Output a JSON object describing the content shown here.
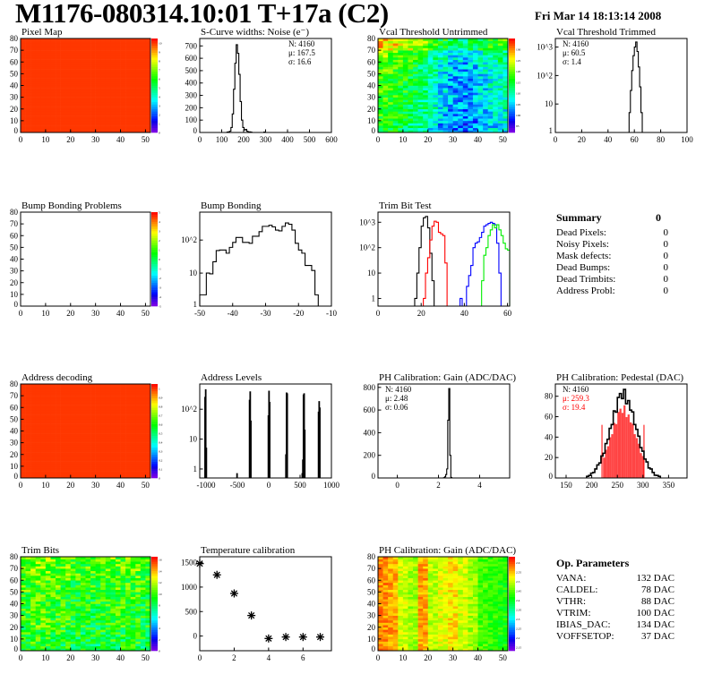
{
  "header": {
    "title": "M1176-080314.10:01 T+17a (C2)",
    "date": "Fri Mar 14 18:13:14 2008"
  },
  "palette": {
    "frame": "#000000",
    "red": "#ff0000",
    "blue": "#0000ff",
    "green": "#00ee00"
  },
  "panels": [
    {
      "title": "Pixel Map",
      "chart_data": {
        "type": "heatmap",
        "xlim": [
          0,
          52
        ],
        "ylim": [
          0,
          80
        ],
        "xticks": [
          0,
          10,
          20,
          30,
          40,
          50
        ],
        "yticks": [
          0,
          10,
          20,
          30,
          40,
          50,
          60,
          70,
          80
        ],
        "zlim": [
          0,
          10.5
        ],
        "mean": 10,
        "noise": 0,
        "col_profile": [],
        "row_profile": [],
        "zticks": [
          "0",
          "1",
          "2",
          "3",
          "4",
          "5",
          "6",
          "7",
          "8",
          "9",
          "10"
        ]
      }
    },
    {
      "title": "S-Curve widths: Noise (e⁻)",
      "chart_data": {
        "type": "bar",
        "log": false,
        "xlim": [
          0,
          600
        ],
        "ylim": [
          0,
          760
        ],
        "xticks": [
          0,
          100,
          200,
          300,
          400,
          500,
          600
        ],
        "yticks": [
          0,
          100,
          200,
          300,
          400,
          500,
          600,
          700
        ],
        "stats_pos": "top-right",
        "stats": [
          {
            "text": "N: 4160",
            "color": "#000000"
          },
          {
            "text": "μ: 167.5",
            "color": "#000000"
          },
          {
            "text": "σ: 16.6",
            "color": "#000000"
          }
        ],
        "series": [
          {
            "name": "noise",
            "color": "#000000",
            "x0": 124,
            "width": 6,
            "values": [
              3,
              5,
              10,
              40,
              150,
              350,
              560,
              710,
              640,
              470,
              250,
              100,
              40,
              20,
              25,
              10,
              5,
              5,
              2,
              0,
              0,
              0,
              0,
              0,
              0,
              0,
              0,
              0,
              3
            ]
          }
        ]
      }
    },
    {
      "title": "Vcal Threshold Untrimmed",
      "chart_data": {
        "type": "heatmap",
        "xlim": [
          0,
          52
        ],
        "ylim": [
          0,
          80
        ],
        "xticks": [
          0,
          10,
          20,
          30,
          40,
          50
        ],
        "yticks": [
          0,
          10,
          20,
          30,
          40,
          50,
          60,
          70,
          80
        ],
        "zlim": [
          92,
          135
        ],
        "mean": 112,
        "noise": 5,
        "col_profile": [
          6,
          5,
          4,
          2,
          0,
          -3,
          -6,
          -8,
          -9,
          -8,
          -6,
          -4,
          -3
        ],
        "row_profile": [
          -2,
          -1,
          0,
          0,
          0,
          1,
          3,
          9
        ],
        "zticks": [
          "95",
          "100",
          "105",
          "110",
          "115",
          "120",
          "125",
          "130"
        ]
      }
    },
    {
      "title": "Vcal Threshold Trimmed",
      "chart_data": {
        "type": "bar",
        "log": true,
        "xlim": [
          0,
          100
        ],
        "ylim": [
          1,
          2000
        ],
        "xticks": [
          0,
          20,
          40,
          60,
          80,
          100
        ],
        "yticks": [
          1,
          10,
          100,
          1000
        ],
        "ytick_labels": [
          "1",
          "10",
          "10^2",
          "10^3"
        ],
        "stats_pos": "top-left",
        "stats": [
          {
            "text": "N: 4160",
            "color": "#000000"
          },
          {
            "text": "μ: 60.5",
            "color": "#000000"
          },
          {
            "text": "σ:  1.4",
            "color": "#000000"
          }
        ],
        "series": [
          {
            "name": "vcal",
            "color": "#000000",
            "x0": 56,
            "width": 1,
            "values": [
              5,
              30,
              150,
              500,
              1000,
              1500,
              700,
              200,
              40,
              5
            ]
          }
        ]
      }
    },
    {
      "title": "Bump Bonding Problems",
      "chart_data": {
        "type": "heatmap",
        "xlim": [
          0,
          52
        ],
        "ylim": [
          0,
          80
        ],
        "xticks": [
          0,
          10,
          20,
          30,
          40,
          50
        ],
        "yticks": [
          0,
          10,
          20,
          30,
          40,
          50,
          60,
          70,
          80
        ],
        "zlim": [
          -5,
          5
        ],
        "empty": true,
        "mean": 0,
        "noise": 0,
        "col_profile": [],
        "row_profile": [],
        "zticks": [
          "-5",
          "-4",
          "-3",
          "-2",
          "-1",
          "0",
          "1",
          "2",
          "3",
          "4",
          "5"
        ]
      }
    },
    {
      "title": "Bump Bonding",
      "chart_data": {
        "type": "bar",
        "log": true,
        "xlim": [
          -50,
          -10
        ],
        "ylim": [
          1,
          700
        ],
        "xticks": [
          -50,
          -40,
          -30,
          -20,
          -10
        ],
        "yticks": [
          1,
          10,
          100
        ],
        "ytick_labels": [
          "1",
          "10",
          "10^2"
        ],
        "series": [
          {
            "name": "bump",
            "color": "#000000",
            "x0": -50,
            "width": 1.0,
            "values": [
              2.2,
              2.2,
              10,
              9.5,
              22,
              48,
              50,
              50,
              40,
              60,
              85,
              120,
              120,
              85,
              85,
              80,
              130,
              130,
              180,
              260,
              260,
              280,
              250,
              200,
              190,
              260,
              330,
              300,
              200,
              80,
              50,
              40,
              17,
              17,
              12,
              2.2
            ]
          }
        ]
      }
    },
    {
      "title": "Trim Bit Test",
      "chart_data": {
        "type": "bar",
        "log": true,
        "xlim": [
          0,
          61
        ],
        "ylim": [
          0.5,
          2500
        ],
        "xticks": [
          0,
          20,
          40,
          60
        ],
        "yticks": [
          1,
          10,
          100,
          1000
        ],
        "ytick_labels": [
          "1",
          "10",
          "10^2",
          "10^3"
        ],
        "series": [
          {
            "name": "trimbit-0",
            "color": "#000000",
            "x0": 17,
            "width": 1,
            "values": [
              1,
              10,
              100,
              700,
              1500,
              1700,
              600,
              60,
              5
            ]
          },
          {
            "name": "trimbit-1",
            "color": "#ff0000",
            "x0": 21,
            "width": 1,
            "values": [
              1,
              10,
              40,
              200,
              700,
              1100,
              1000,
              400,
              350,
              300,
              25
            ]
          },
          {
            "name": "trimbit-2",
            "color": "#0000ff",
            "x0": 38,
            "width": 1,
            "values": [
              1,
              0,
              0,
              3,
              8,
              20,
              100,
              150,
              170,
              250,
              400,
              700,
              800,
              900,
              1000,
              900,
              800,
              150,
              10
            ]
          },
          {
            "name": "trimbit-3",
            "color": "#00ee00",
            "x0": 48,
            "width": 1,
            "values": [
              5,
              50,
              100,
              300,
              500,
              800,
              600,
              800,
              500,
              300,
              150,
              90,
              80
            ]
          }
        ]
      }
    },
    {
      "title": "Address decoding",
      "chart_data": {
        "type": "heatmap",
        "xlim": [
          0,
          52
        ],
        "ylim": [
          0,
          80
        ],
        "xticks": [
          0,
          10,
          20,
          30,
          40,
          50
        ],
        "yticks": [
          0,
          10,
          20,
          30,
          40,
          50,
          60,
          70,
          80
        ],
        "zlim": [
          0,
          1.05
        ],
        "mean": 1,
        "noise": 0,
        "col_profile": [],
        "row_profile": [],
        "zticks": [
          "0",
          "0.1",
          "0.2",
          "0.3",
          "0.4",
          "0.5",
          "0.6",
          "0.7",
          "0.8",
          "0.9",
          "1"
        ]
      }
    },
    {
      "title": "Address Levels",
      "chart_data": {
        "type": "bar",
        "log": true,
        "xlim": [
          -1100,
          1000
        ],
        "ylim": [
          0.5,
          700
        ],
        "xticks": [
          -1000,
          -500,
          0,
          500,
          1000
        ],
        "yticks": [
          1,
          10,
          100
        ],
        "ytick_labels": [
          "1",
          "10",
          "10^2"
        ],
        "series": [
          {
            "name": "levels",
            "color": "#000000",
            "spikes": [
              [
                -1015,
                250
              ],
              [
                -1005,
                450
              ],
              [
                -995,
                5
              ],
              [
                -505,
                0.7
              ],
              [
                -305,
                200
              ],
              [
                -295,
                380
              ],
              [
                -285,
                40
              ],
              [
                -5,
                60
              ],
              [
                5,
                400
              ],
              [
                15,
                170
              ],
              [
                275,
                3
              ],
              [
                285,
                350
              ],
              [
                295,
                330
              ],
              [
                535,
                0.7
              ],
              [
                545,
                2
              ],
              [
                555,
                300
              ],
              [
                565,
                330
              ],
              [
                575,
                20
              ],
              [
                795,
                80
              ],
              [
                805,
                180
              ],
              [
                815,
                110
              ]
            ],
            "width": 10
          }
        ]
      }
    },
    {
      "title": "PH Calibration: Gain (ADC/DAC)",
      "chart_data": {
        "type": "bar",
        "log": false,
        "xlim": [
          -0.94,
          5.46
        ],
        "ylim": [
          0,
          830
        ],
        "xticks": [
          0,
          2,
          4
        ],
        "yticks": [
          0,
          200,
          400,
          600,
          800
        ],
        "stats_pos": "top-left",
        "stats": [
          {
            "text": "N: 4160",
            "color": "#000000"
          },
          {
            "text": "μ: 2.48",
            "color": "#000000"
          },
          {
            "text": "σ: 0.06",
            "color": "#000000"
          }
        ],
        "series": [
          {
            "name": "gain",
            "color": "#000000",
            "x0": 2.25,
            "width": 0.05,
            "values": [
              3,
              10,
              30,
              80,
              510,
              790,
              200,
              5
            ]
          }
        ]
      }
    },
    {
      "title": "PH Calibration: Pedestal (DAC)",
      "chart_data": {
        "type": "bar",
        "log": false,
        "xlim": [
          129,
          386
        ],
        "ylim": [
          0,
          92
        ],
        "xticks": [
          150,
          200,
          250,
          300,
          350
        ],
        "yticks": [
          0,
          20,
          40,
          60,
          80
        ],
        "stats_pos": "top-left",
        "stats": [
          {
            "text": "N: 4160",
            "color": "#000000"
          },
          {
            "text": "μ: 259.3",
            "color": "#ff0000"
          },
          {
            "text": "σ: 19.4",
            "color": "#ff0000"
          }
        ],
        "fit_range": [
          220,
          302
        ],
        "fit_line_height": 52,
        "series": [
          {
            "name": "pedestal",
            "color": "#000000",
            "x0": 190,
            "width": 4,
            "values": [
              1.6,
              2.5,
              4.7,
              5.4,
              8.8,
              12.8,
              14.7,
              21.5,
              24.2,
              33.7,
              37.9,
              48.6,
              52.3,
              65.7,
              64.4,
              78.8,
              82.7,
              77.7,
              86.7,
              72.7,
              75.8,
              66.4,
              64.7,
              52.3,
              47.6,
              40.9,
              29.7,
              26.2,
              18.5,
              15.7,
              9.8,
              8.8,
              5.4,
              2.7,
              2.5,
              1.6
            ],
            "fill": "#ff3030"
          }
        ]
      }
    },
    {
      "title": "Trim Bits",
      "chart_data": {
        "type": "heatmap",
        "xlim": [
          0,
          52
        ],
        "ylim": [
          0,
          80
        ],
        "xticks": [
          0,
          10,
          20,
          30,
          40,
          50
        ],
        "yticks": [
          0,
          10,
          20,
          30,
          40,
          50,
          60,
          70,
          80
        ],
        "zlim": [
          0,
          16.5
        ],
        "mean": 9.5,
        "noise": 2.2,
        "col_profile": [
          0,
          0.5,
          0.5,
          0,
          0,
          -0.5,
          -0.5,
          -0.5,
          0,
          0,
          0,
          0,
          -0.5
        ],
        "row_profile": [
          -0.5,
          -0.3,
          0,
          0,
          0.2,
          0.5,
          0.8,
          1
        ],
        "zticks": [
          "0",
          "2",
          "4",
          "6",
          "8",
          "10",
          "12",
          "14",
          "16"
        ]
      }
    },
    {
      "title": "Temperature calibration",
      "chart_data": {
        "type": "scatter",
        "xlim": [
          0,
          7.65
        ],
        "ylim": [
          -300,
          1620
        ],
        "xticks": [
          0,
          2,
          4,
          6
        ],
        "yticks": [
          0,
          500,
          1000,
          1500
        ],
        "points": [
          [
            0,
            1480
          ],
          [
            1,
            1250
          ],
          [
            2,
            870
          ],
          [
            3,
            420
          ],
          [
            4,
            -50
          ],
          [
            5,
            -20
          ],
          [
            6,
            -20
          ],
          [
            7,
            -20
          ]
        ]
      }
    },
    {
      "title": "PH Calibration: Gain (ADC/DAC)",
      "chart_data": {
        "type": "heatmap",
        "xlim": [
          0,
          52
        ],
        "ylim": [
          0,
          80
        ],
        "xticks": [
          0,
          10,
          20,
          30,
          40,
          50
        ],
        "yticks": [
          0,
          10,
          20,
          30,
          40,
          50,
          60,
          70,
          80
        ],
        "zlim": [
          2.13,
          2.63
        ],
        "mean": 2.48,
        "noise": 0.03,
        "col_profile": [
          0.09,
          0.08,
          0.02,
          0.0,
          0.08,
          0.01,
          0.03,
          0.05,
          0.02,
          0.0,
          -0.04,
          -0.05,
          -0.06
        ],
        "row_profile": [],
        "zticks": [
          "2.15",
          "2.2",
          "2.25",
          "2.3",
          "2.35",
          "2.4",
          "2.45",
          "2.5",
          "2.55",
          "2.6"
        ]
      }
    }
  ],
  "summary": {
    "title": "Summary",
    "total": "0",
    "rows": [
      {
        "label": "Dead Pixels:",
        "value": "0"
      },
      {
        "label": "Noisy Pixels:",
        "value": "0"
      },
      {
        "label": "Mask defects:",
        "value": "0"
      },
      {
        "label": "Dead Bumps:",
        "value": "0"
      },
      {
        "label": "Dead Trimbits:",
        "value": "0"
      },
      {
        "label": "Address Probl:",
        "value": "0"
      }
    ]
  },
  "op_params": {
    "title": "Op. Parameters",
    "rows": [
      {
        "label": "VANA:",
        "value": "132 DAC"
      },
      {
        "label": "CALDEL:",
        "value": "78 DAC"
      },
      {
        "label": "VTHR:",
        "value": "88 DAC"
      },
      {
        "label": "VTRIM:",
        "value": "100 DAC"
      },
      {
        "label": "IBIAS_DAC:",
        "value": "134 DAC"
      },
      {
        "label": "VOFFSETOP:",
        "value": "37 DAC"
      }
    ]
  }
}
